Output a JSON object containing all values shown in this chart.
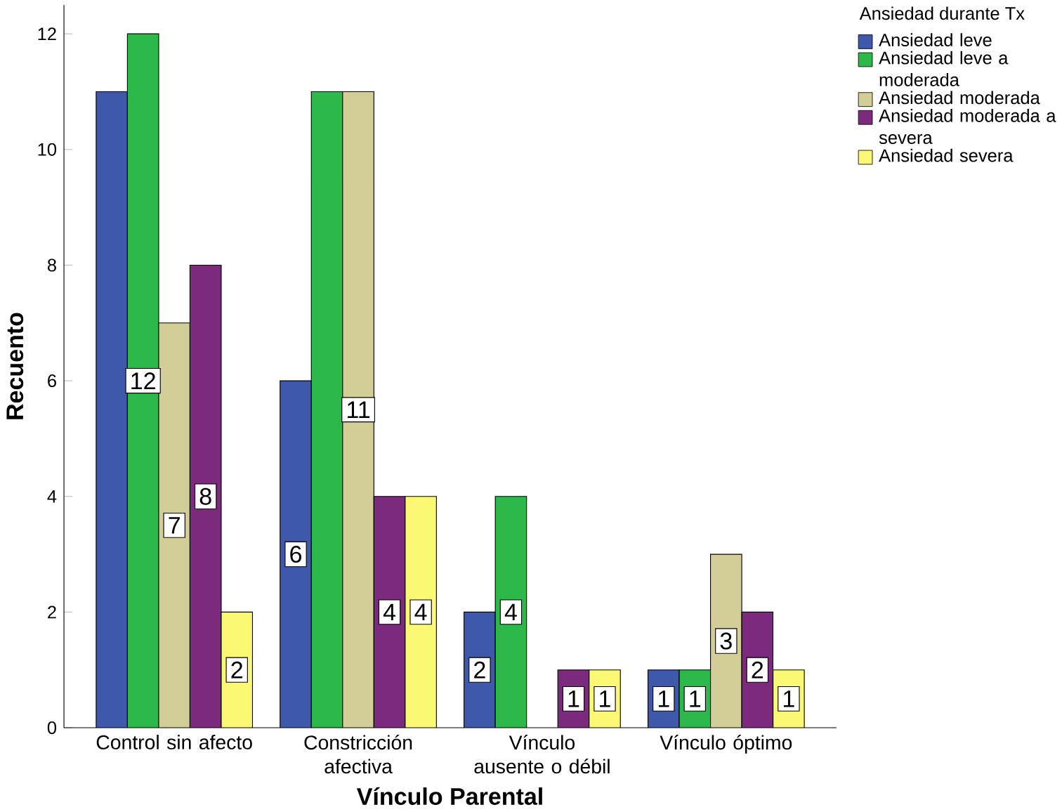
{
  "chart_data": {
    "type": "bar",
    "xlabel": "Vínculo Parental",
    "ylabel": "Recuento",
    "legend_title": "Ansiedad durante Tx",
    "categories": [
      "Control sin afecto",
      "Constricción afectiva",
      "Vínculo ausente o débil",
      "Vínculo óptimo"
    ],
    "series": [
      {
        "name": "Ansiedad leve",
        "color": "#3e58ac",
        "values": [
          11,
          6,
          2,
          1
        ],
        "value_labels": [
          null,
          "6",
          "2",
          "1"
        ]
      },
      {
        "name": "Ansiedad leve a moderada",
        "color": "#2db84a",
        "values": [
          12,
          11,
          4,
          1
        ],
        "value_labels": [
          "12",
          null,
          "4",
          "1"
        ]
      },
      {
        "name": "Ansiedad moderada",
        "color": "#d3ce97",
        "values": [
          7,
          11,
          null,
          3
        ],
        "value_labels": [
          "7",
          "11",
          null,
          "3"
        ]
      },
      {
        "name": "Ansiedad moderada a severa",
        "color": "#7b2a7e",
        "values": [
          8,
          4,
          1,
          2
        ],
        "value_labels": [
          "8",
          "4",
          "1",
          "2"
        ]
      },
      {
        "name": "Ansiedad severa",
        "color": "#fbf873",
        "values": [
          2,
          4,
          1,
          1
        ],
        "value_labels": [
          "2",
          "4",
          "1",
          "1"
        ]
      }
    ],
    "ylim": [
      0,
      12.5
    ],
    "yticks": [
      0,
      2,
      4,
      6,
      8,
      10,
      12
    ],
    "grid": false,
    "legend": "right"
  }
}
